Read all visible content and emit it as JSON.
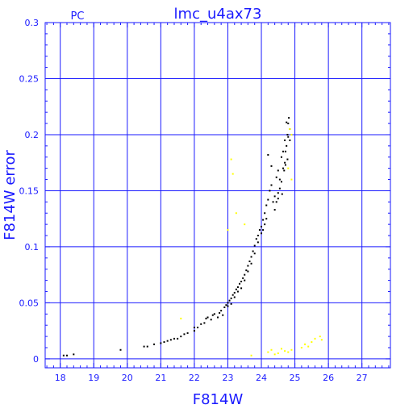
{
  "colors": {
    "axis": "#1a1aff",
    "grid": "#1a1aff",
    "primary_points": "#000000",
    "secondary_points": "#ffff00",
    "background": "#ffffff"
  },
  "chart_data": {
    "type": "scatter",
    "title": "lmc_u4ax73",
    "corner_label": "PC",
    "xlabel": "F814W",
    "ylabel": "F814W error",
    "xlim": [
      17.55,
      27.85
    ],
    "ylim": [
      -0.008,
      0.3
    ],
    "grid": true,
    "x_ticks": [
      18,
      19,
      20,
      21,
      22,
      23,
      24,
      25,
      26,
      27
    ],
    "y_ticks": [
      0,
      0.05,
      0.1,
      0.15,
      0.2,
      0.25,
      0.3
    ],
    "x_tick_labels": [
      "18",
      "19",
      "20",
      "21",
      "22",
      "23",
      "24",
      "25",
      "26",
      "27"
    ],
    "y_tick_labels": [
      "0",
      "0.05",
      "0.1",
      "0.15",
      "0.2",
      "0.25",
      "0.3"
    ],
    "series": [
      {
        "color": "#000000",
        "points": [
          [
            18.1,
            0.003
          ],
          [
            18.2,
            0.003
          ],
          [
            18.4,
            0.004
          ],
          [
            19.8,
            0.008
          ],
          [
            20.5,
            0.011
          ],
          [
            20.6,
            0.011
          ],
          [
            20.8,
            0.013
          ],
          [
            21.0,
            0.014
          ],
          [
            21.1,
            0.015
          ],
          [
            21.2,
            0.016
          ],
          [
            21.3,
            0.017
          ],
          [
            21.4,
            0.018
          ],
          [
            21.5,
            0.018
          ],
          [
            21.6,
            0.02
          ],
          [
            21.7,
            0.022
          ],
          [
            21.8,
            0.023
          ],
          [
            22.0,
            0.025
          ],
          [
            22.0,
            0.028
          ],
          [
            22.1,
            0.028
          ],
          [
            22.2,
            0.031
          ],
          [
            22.3,
            0.032
          ],
          [
            22.35,
            0.036
          ],
          [
            22.4,
            0.037
          ],
          [
            22.5,
            0.035
          ],
          [
            22.55,
            0.039
          ],
          [
            22.6,
            0.04
          ],
          [
            22.7,
            0.037
          ],
          [
            22.75,
            0.041
          ],
          [
            22.8,
            0.043
          ],
          [
            22.85,
            0.039
          ],
          [
            22.9,
            0.046
          ],
          [
            22.95,
            0.048
          ],
          [
            23.0,
            0.05
          ],
          [
            23.0,
            0.047
          ],
          [
            23.05,
            0.052
          ],
          [
            23.1,
            0.054
          ],
          [
            23.1,
            0.049
          ],
          [
            23.15,
            0.057
          ],
          [
            23.2,
            0.059
          ],
          [
            23.2,
            0.055
          ],
          [
            23.25,
            0.062
          ],
          [
            23.3,
            0.064
          ],
          [
            23.3,
            0.06
          ],
          [
            23.35,
            0.067
          ],
          [
            23.4,
            0.069
          ],
          [
            23.4,
            0.063
          ],
          [
            23.45,
            0.072
          ],
          [
            23.5,
            0.075
          ],
          [
            23.5,
            0.07
          ],
          [
            23.55,
            0.079
          ],
          [
            23.6,
            0.083
          ],
          [
            23.6,
            0.078
          ],
          [
            23.65,
            0.087
          ],
          [
            23.7,
            0.091
          ],
          [
            23.7,
            0.085
          ],
          [
            23.75,
            0.096
          ],
          [
            23.8,
            0.101
          ],
          [
            23.8,
            0.094
          ],
          [
            23.85,
            0.107
          ],
          [
            23.9,
            0.11
          ],
          [
            23.9,
            0.104
          ],
          [
            23.95,
            0.115
          ],
          [
            24.0,
            0.118
          ],
          [
            24.0,
            0.112
          ],
          [
            24.05,
            0.124
          ],
          [
            24.1,
            0.13
          ],
          [
            24.15,
            0.137
          ],
          [
            24.2,
            0.142
          ],
          [
            24.25,
            0.15
          ],
          [
            24.3,
            0.155
          ],
          [
            24.4,
            0.145
          ],
          [
            24.45,
            0.14
          ],
          [
            24.5,
            0.148
          ],
          [
            24.55,
            0.16
          ],
          [
            24.6,
            0.158
          ],
          [
            24.65,
            0.17
          ],
          [
            24.7,
            0.175
          ],
          [
            24.72,
            0.185
          ],
          [
            24.75,
            0.19
          ],
          [
            24.78,
            0.2
          ],
          [
            24.8,
            0.21
          ],
          [
            24.82,
            0.215
          ],
          [
            24.85,
            0.205
          ],
          [
            24.85,
            0.195
          ],
          [
            24.2,
            0.182
          ],
          [
            24.3,
            0.172
          ],
          [
            24.45,
            0.162
          ],
          [
            24.5,
            0.168
          ],
          [
            24.55,
            0.152
          ],
          [
            24.6,
            0.18
          ],
          [
            24.65,
            0.185
          ],
          [
            24.7,
            0.195
          ],
          [
            24.75,
            0.211
          ],
          [
            24.8,
            0.198
          ],
          [
            24.1,
            0.12
          ],
          [
            24.05,
            0.115
          ],
          [
            24.15,
            0.125
          ],
          [
            24.35,
            0.14
          ],
          [
            24.4,
            0.133
          ],
          [
            24.5,
            0.143
          ],
          [
            24.62,
            0.147
          ],
          [
            24.68,
            0.168
          ],
          [
            24.72,
            0.173
          ],
          [
            24.78,
            0.178
          ]
        ]
      },
      {
        "color": "#ffff00",
        "points": [
          [
            21.6,
            0.036
          ],
          [
            23.1,
            0.178
          ],
          [
            23.15,
            0.165
          ],
          [
            23.25,
            0.13
          ],
          [
            23.5,
            0.12
          ],
          [
            23.0,
            0.115
          ],
          [
            24.8,
            0.17
          ],
          [
            24.9,
            0.16
          ],
          [
            23.7,
            0.003
          ],
          [
            24.2,
            0.006
          ],
          [
            24.3,
            0.008
          ],
          [
            24.5,
            0.005
          ],
          [
            24.6,
            0.009
          ],
          [
            24.7,
            0.007
          ],
          [
            24.8,
            0.006
          ],
          [
            24.9,
            0.008
          ],
          [
            25.3,
            0.013
          ],
          [
            25.4,
            0.011
          ],
          [
            25.5,
            0.015
          ],
          [
            25.6,
            0.018
          ],
          [
            25.75,
            0.02
          ],
          [
            25.8,
            0.017
          ],
          [
            25.2,
            0.01
          ],
          [
            24.4,
            0.004
          ],
          [
            24.85,
            0.205
          ],
          [
            24.9,
            0.2
          ]
        ]
      }
    ]
  }
}
